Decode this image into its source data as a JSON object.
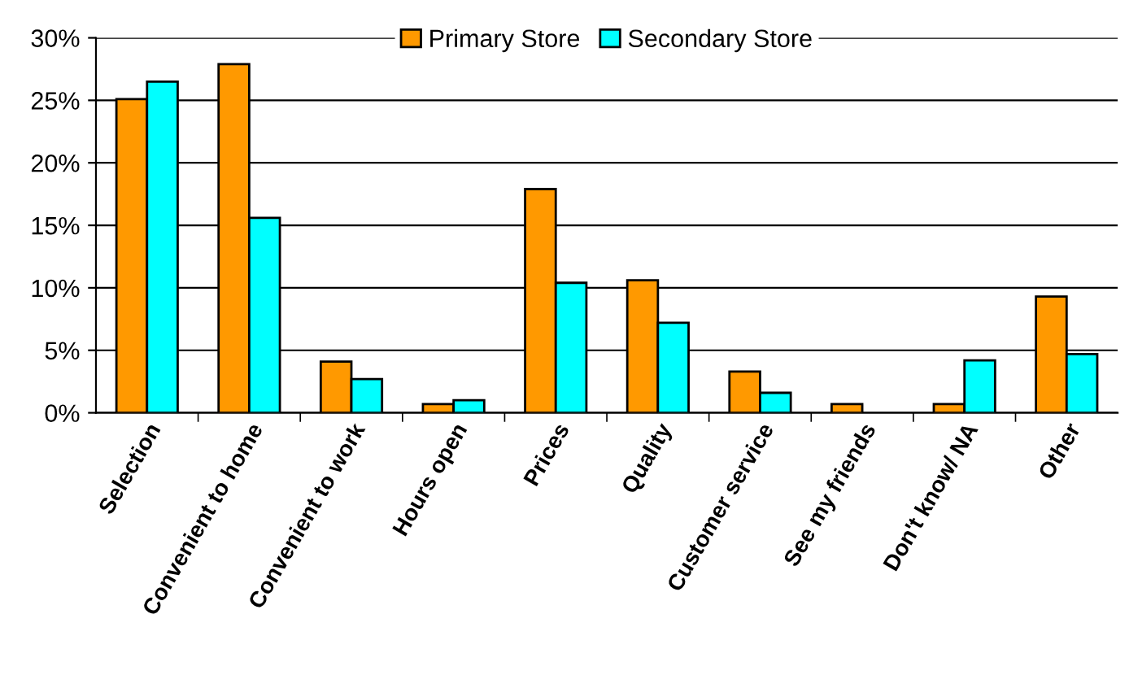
{
  "chart_data": {
    "type": "bar",
    "categories": [
      "Selection",
      "Convenient to home",
      "Convenient to work",
      "Hours open",
      "Prices",
      "Quality",
      "Customer service",
      "See my friends",
      "Don't know/ NA",
      "Other"
    ],
    "series": [
      {
        "name": "Primary Store",
        "color": "#ff9900",
        "values": [
          25.1,
          27.9,
          4.1,
          0.7,
          17.9,
          10.6,
          3.3,
          0.7,
          0.7,
          9.3
        ]
      },
      {
        "name": "Secondary Store",
        "color": "#00ffff",
        "values": [
          26.5,
          15.6,
          2.7,
          1.0,
          10.4,
          7.2,
          1.6,
          null,
          4.2,
          4.7
        ]
      }
    ],
    "ylim": [
      0,
      30
    ],
    "yticks": [
      {
        "value": 0,
        "label": "0%"
      },
      {
        "value": 5,
        "label": "5%"
      },
      {
        "value": 10,
        "label": "10%"
      },
      {
        "value": 15,
        "label": "15%"
      },
      {
        "value": 20,
        "label": "20%"
      },
      {
        "value": 25,
        "label": "25%"
      },
      {
        "value": 30,
        "label": "30%"
      }
    ],
    "grid": "y",
    "legend": "top"
  }
}
